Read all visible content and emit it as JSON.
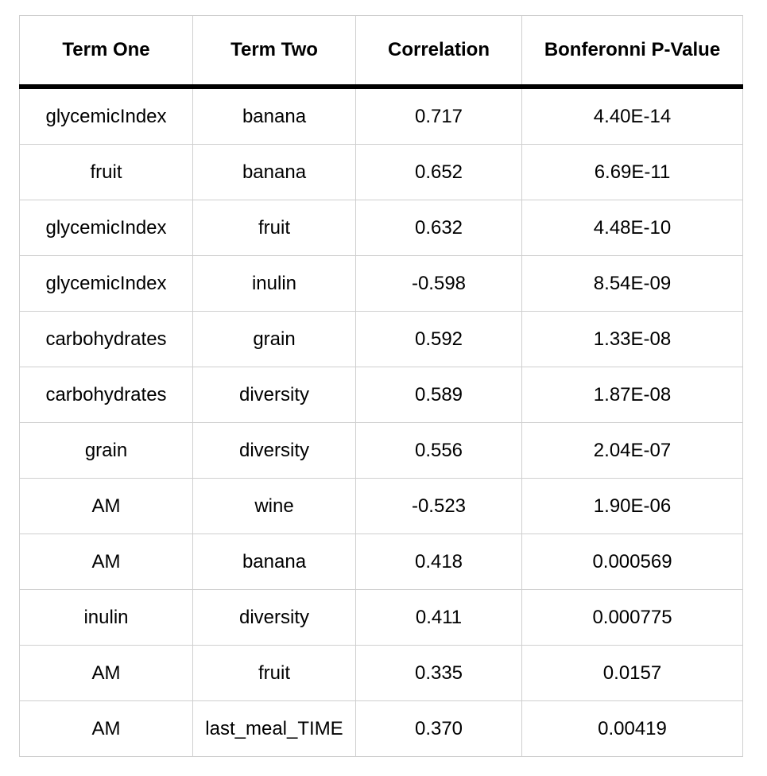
{
  "table": {
    "headers": [
      "Term One",
      "Term Two",
      "Correlation",
      "Bonferonni P-Value"
    ],
    "rows": [
      [
        "glycemicIndex",
        "banana",
        "0.717",
        "4.40E-14"
      ],
      [
        "fruit",
        "banana",
        "0.652",
        "6.69E-11"
      ],
      [
        "glycemicIndex",
        "fruit",
        "0.632",
        "4.48E-10"
      ],
      [
        "glycemicIndex",
        "inulin",
        "-0.598",
        "8.54E-09"
      ],
      [
        "carbohydrates",
        "grain",
        "0.592",
        "1.33E-08"
      ],
      [
        "carbohydrates",
        "diversity",
        "0.589",
        "1.87E-08"
      ],
      [
        "grain",
        "diversity",
        "0.556",
        "2.04E-07"
      ],
      [
        "AM",
        "wine",
        "-0.523",
        "1.90E-06"
      ],
      [
        "AM",
        "banana",
        "0.418",
        "0.000569"
      ],
      [
        "inulin",
        "diversity",
        "0.411",
        "0.000775"
      ],
      [
        "AM",
        "fruit",
        "0.335",
        "0.0157"
      ],
      [
        "AM",
        "last_meal_TIME",
        "0.370",
        "0.00419"
      ]
    ]
  }
}
